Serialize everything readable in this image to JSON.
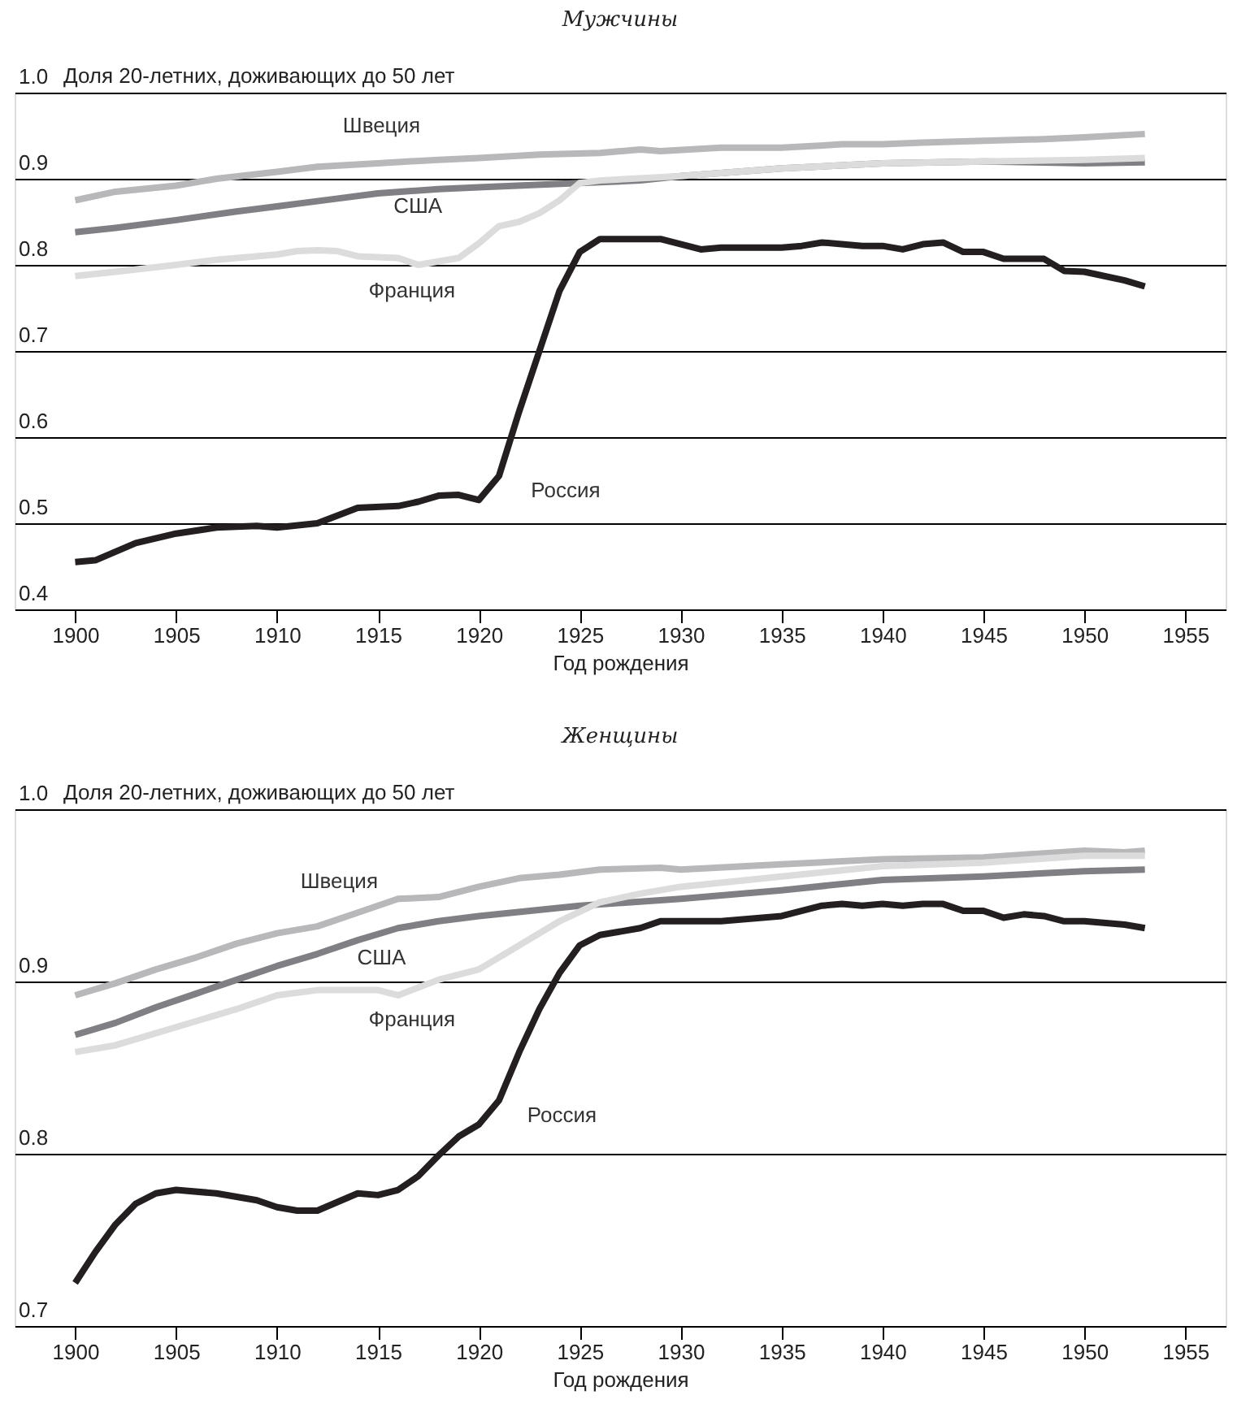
{
  "chart_data": [
    {
      "type": "line",
      "title": "Мужчины",
      "xlabel": "Год рождения",
      "ylabel": "Доля 20-летних, доживающих до 50 лет",
      "xlim": [
        1897,
        1957
      ],
      "xticks": [
        1900,
        1905,
        1910,
        1915,
        1920,
        1925,
        1930,
        1935,
        1940,
        1945,
        1950,
        1955
      ],
      "ylim": [
        0.4,
        1.0
      ],
      "yticks": [
        0.4,
        0.5,
        0.6,
        0.7,
        0.8,
        0.9,
        {
          "value": 1.0,
          "label": "1.0"
        }
      ],
      "grid": "y",
      "legend": false,
      "marker": "none",
      "line_style": "solid",
      "series": [
        {
          "name": "Швеция",
          "color": "#b8b8bb",
          "x": [
            1900,
            1902,
            1905,
            1907,
            1910,
            1912,
            1915,
            1918,
            1920,
            1923,
            1926,
            1928,
            1929,
            1932,
            1935,
            1938,
            1940,
            1942,
            1945,
            1948,
            1950,
            1953
          ],
          "values": [
            0.875,
            0.885,
            0.892,
            0.9,
            0.908,
            0.914,
            0.918,
            0.922,
            0.924,
            0.928,
            0.93,
            0.934,
            0.932,
            0.936,
            0.936,
            0.94,
            0.94,
            0.942,
            0.944,
            0.946,
            0.948,
            0.952
          ]
        },
        {
          "name": "США",
          "color": "#808084",
          "x": [
            1900,
            1902,
            1905,
            1908,
            1910,
            1913,
            1915,
            1918,
            1920,
            1925,
            1928,
            1930,
            1935,
            1940,
            1945,
            1950,
            1953
          ],
          "values": [
            0.838,
            0.843,
            0.852,
            0.862,
            0.868,
            0.877,
            0.883,
            0.888,
            0.89,
            0.895,
            0.898,
            0.903,
            0.912,
            0.918,
            0.92,
            0.918,
            0.919
          ]
        },
        {
          "name": "Франция",
          "color": "#dcdcdc",
          "x": [
            1900,
            1902,
            1905,
            1907,
            1910,
            1911,
            1912,
            1913,
            1914,
            1916,
            1917,
            1918,
            1919,
            1920,
            1921,
            1922,
            1923,
            1924,
            1925,
            1926,
            1930,
            1935,
            1940,
            1945,
            1950,
            1953
          ],
          "values": [
            0.787,
            0.792,
            0.8,
            0.806,
            0.812,
            0.816,
            0.817,
            0.816,
            0.81,
            0.808,
            0.8,
            0.804,
            0.808,
            0.825,
            0.845,
            0.85,
            0.86,
            0.875,
            0.895,
            0.898,
            0.903,
            0.912,
            0.918,
            0.92,
            0.922,
            0.924
          ]
        },
        {
          "name": "Россия",
          "color": "#231f20",
          "x": [
            1900,
            1901,
            1903,
            1905,
            1907,
            1909,
            1910,
            1912,
            1914,
            1916,
            1917,
            1918,
            1919,
            1920,
            1921,
            1922,
            1923,
            1924,
            1925,
            1926,
            1927,
            1929,
            1931,
            1932,
            1935,
            1936,
            1937,
            1939,
            1940,
            1941,
            1942,
            1943,
            1944,
            1945,
            1946,
            1948,
            1949,
            1950,
            1952,
            1953
          ],
          "values": [
            0.455,
            0.457,
            0.477,
            0.488,
            0.495,
            0.497,
            0.495,
            0.5,
            0.518,
            0.52,
            0.525,
            0.532,
            0.533,
            0.527,
            0.555,
            0.63,
            0.7,
            0.77,
            0.815,
            0.83,
            0.83,
            0.83,
            0.818,
            0.82,
            0.82,
            0.822,
            0.826,
            0.822,
            0.822,
            0.818,
            0.824,
            0.826,
            0.815,
            0.815,
            0.807,
            0.807,
            0.793,
            0.792,
            0.782,
            0.775
          ]
        }
      ]
    },
    {
      "type": "line",
      "title": "Женщины",
      "xlabel": "Год рождения",
      "ylabel": "Доля 20-летних, доживающих до 50 лет",
      "xlim": [
        1897,
        1957
      ],
      "xticks": [
        1900,
        1905,
        1910,
        1915,
        1920,
        1925,
        1930,
        1935,
        1940,
        1945,
        1950,
        1955
      ],
      "ylim": [
        0.7,
        1.0
      ],
      "yticks": [
        0.7,
        0.8,
        0.9,
        {
          "value": 1.0,
          "label": "1.0"
        }
      ],
      "grid": "y",
      "legend": false,
      "marker": "none",
      "line_style": "solid",
      "series": [
        {
          "name": "Швеция",
          "color": "#b8b8bb",
          "x": [
            1900,
            1902,
            1904,
            1906,
            1908,
            1910,
            1912,
            1914,
            1916,
            1918,
            1920,
            1922,
            1924,
            1926,
            1929,
            1930,
            1935,
            1940,
            1945,
            1950,
            1952,
            1953
          ],
          "values": [
            0.892,
            0.899,
            0.907,
            0.914,
            0.922,
            0.928,
            0.932,
            0.94,
            0.948,
            0.949,
            0.955,
            0.96,
            0.962,
            0.965,
            0.966,
            0.965,
            0.968,
            0.971,
            0.972,
            0.976,
            0.975,
            0.976
          ]
        },
        {
          "name": "США",
          "color": "#808084",
          "x": [
            1900,
            1902,
            1904,
            1906,
            1908,
            1910,
            1912,
            1914,
            1916,
            1918,
            1920,
            1925,
            1930,
            1935,
            1940,
            1945,
            1950,
            1953
          ],
          "values": [
            0.869,
            0.876,
            0.885,
            0.893,
            0.901,
            0.909,
            0.916,
            0.924,
            0.931,
            0.935,
            0.938,
            0.944,
            0.948,
            0.953,
            0.959,
            0.961,
            0.964,
            0.965
          ]
        },
        {
          "name": "Франция",
          "color": "#dcdcdc",
          "x": [
            1900,
            1902,
            1904,
            1906,
            1908,
            1910,
            1912,
            1914,
            1915,
            1916,
            1918,
            1920,
            1922,
            1924,
            1926,
            1928,
            1930,
            1935,
            1940,
            1945,
            1950,
            1953
          ],
          "values": [
            0.859,
            0.863,
            0.87,
            0.877,
            0.884,
            0.892,
            0.895,
            0.895,
            0.895,
            0.892,
            0.901,
            0.907,
            0.921,
            0.935,
            0.946,
            0.951,
            0.955,
            0.961,
            0.967,
            0.969,
            0.973,
            0.973
          ]
        },
        {
          "name": "Россия",
          "color": "#231f20",
          "x": [
            1900,
            1901,
            1902,
            1903,
            1904,
            1905,
            1907,
            1909,
            1910,
            1911,
            1912,
            1914,
            1915,
            1916,
            1917,
            1918,
            1919,
            1920,
            1921,
            1922,
            1923,
            1924,
            1925,
            1926,
            1928,
            1929,
            1932,
            1935,
            1937,
            1938,
            1939,
            1940,
            1941,
            1942,
            1943,
            1944,
            1945,
            1946,
            1947,
            1948,
            1949,
            1950,
            1952,
            1953
          ],
          "values": [
            0.725,
            0.743,
            0.759,
            0.771,
            0.777,
            0.779,
            0.777,
            0.773,
            0.769,
            0.767,
            0.767,
            0.777,
            0.776,
            0.779,
            0.787,
            0.799,
            0.81,
            0.817,
            0.831,
            0.859,
            0.884,
            0.905,
            0.921,
            0.927,
            0.931,
            0.935,
            0.935,
            0.938,
            0.944,
            0.945,
            0.944,
            0.945,
            0.944,
            0.945,
            0.945,
            0.941,
            0.941,
            0.937,
            0.939,
            0.938,
            0.935,
            0.935,
            0.933,
            0.931
          ]
        }
      ]
    }
  ]
}
